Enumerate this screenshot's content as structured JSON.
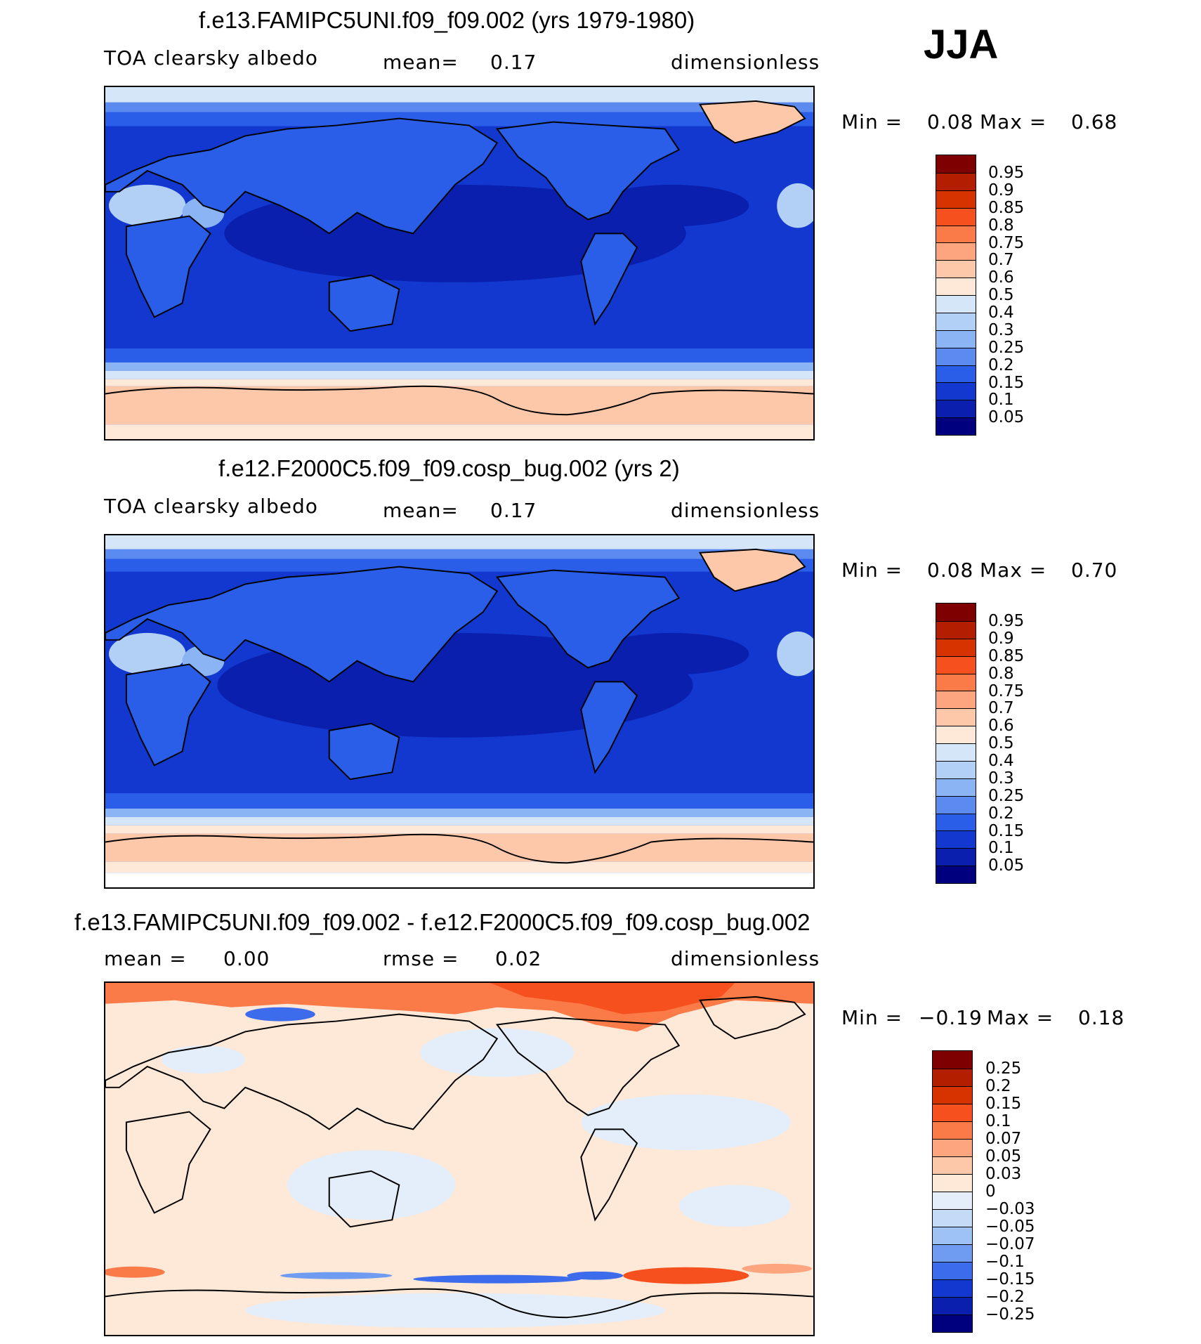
{
  "season": "JJA",
  "panels": [
    {
      "title": "f.e13.FAMIPC5UNI.f09_f09.002 (yrs 1979-1980)",
      "variable": "TOA  clearsky  albedo",
      "stat_label": "mean=",
      "stat_value": "0.17",
      "units": "dimensionless",
      "min_label": "Min  =",
      "min_value": "0.08",
      "max_label": "Max  =",
      "max_value": "0.68",
      "colorbar": {
        "levels": [
          "0.95",
          "0.9",
          "0.85",
          "0.8",
          "0.75",
          "0.7",
          "0.6",
          "0.5",
          "0.4",
          "0.3",
          "0.25",
          "0.2",
          "0.15",
          "0.1",
          "0.05"
        ],
        "colors": [
          "#7f0000",
          "#b31e00",
          "#d73300",
          "#f5501d",
          "#fa7a48",
          "#fca57e",
          "#fdc8aa",
          "#fee8d7",
          "#d6e6f9",
          "#b2cff5",
          "#8ab4f3",
          "#5b8bef",
          "#2a5ee8",
          "#1338d0",
          "#0a1fae",
          "#00007f"
        ]
      },
      "chart_data": {
        "type": "heatmap",
        "title": "f.e13.FAMIPC5UNI.f09_f09.002 (yrs 1979-1980)",
        "variable": "TOA clearsky albedo",
        "units": "dimensionless",
        "mean": 0.17,
        "min": 0.08,
        "max": 0.68,
        "projection": "cylindrical equidistant, centered on Pacific"
      }
    },
    {
      "title": "f.e12.F2000C5.f09_f09.cosp_bug.002 (yrs 2)",
      "variable": "TOA  clearsky  albedo",
      "stat_label": "mean=",
      "stat_value": "0.17",
      "units": "dimensionless",
      "min_label": "Min  =",
      "min_value": "0.08",
      "max_label": "Max  =",
      "max_value": "0.70",
      "colorbar": {
        "levels": [
          "0.95",
          "0.9",
          "0.85",
          "0.8",
          "0.75",
          "0.7",
          "0.6",
          "0.5",
          "0.4",
          "0.3",
          "0.25",
          "0.2",
          "0.15",
          "0.1",
          "0.05"
        ],
        "colors": [
          "#7f0000",
          "#b31e00",
          "#d73300",
          "#f5501d",
          "#fa7a48",
          "#fca57e",
          "#fdc8aa",
          "#fee8d7",
          "#d6e6f9",
          "#b2cff5",
          "#8ab4f3",
          "#5b8bef",
          "#2a5ee8",
          "#1338d0",
          "#0a1fae",
          "#00007f"
        ]
      },
      "chart_data": {
        "type": "heatmap",
        "title": "f.e12.F2000C5.f09_f09.cosp_bug.002 (yrs 2)",
        "variable": "TOA clearsky albedo",
        "units": "dimensionless",
        "mean": 0.17,
        "min": 0.08,
        "max": 0.7,
        "projection": "cylindrical equidistant, centered on Pacific"
      }
    },
    {
      "title": "f.e13.FAMIPC5UNI.f09_f09.002 - f.e12.F2000C5.f09_f09.cosp_bug.002",
      "variable": "mean  =",
      "variable_value": "0.00",
      "stat_label": "rmse  =",
      "stat_value": "0.02",
      "units": "dimensionless",
      "min_label": "Min  =",
      "min_value": "−0.19",
      "max_label": "Max  =",
      "max_value": "0.18",
      "colorbar": {
        "levels": [
          "0.25",
          "0.2",
          "0.15",
          "0.1",
          "0.07",
          "0.05",
          "0.03",
          "0",
          "−0.03",
          "−0.05",
          "−0.07",
          "−0.1",
          "−0.15",
          "−0.2",
          "−0.25"
        ],
        "colors": [
          "#7f0000",
          "#b31e00",
          "#d73300",
          "#f5501d",
          "#fa7a48",
          "#fca57e",
          "#fdc8aa",
          "#fee8d7",
          "#e3eefa",
          "#c4dbf7",
          "#9fc2f5",
          "#6f9bf0",
          "#3c6beb",
          "#1338d0",
          "#0a1fae",
          "#00007f"
        ]
      },
      "chart_data": {
        "type": "heatmap",
        "title": "f.e13.FAMIPC5UNI.f09_f09.002 - f.e12.F2000C5.f09_f09.cosp_bug.002",
        "units": "dimensionless",
        "mean": 0.0,
        "rmse": 0.02,
        "min": -0.19,
        "max": 0.18,
        "projection": "cylindrical equidistant, centered on Pacific"
      }
    }
  ]
}
